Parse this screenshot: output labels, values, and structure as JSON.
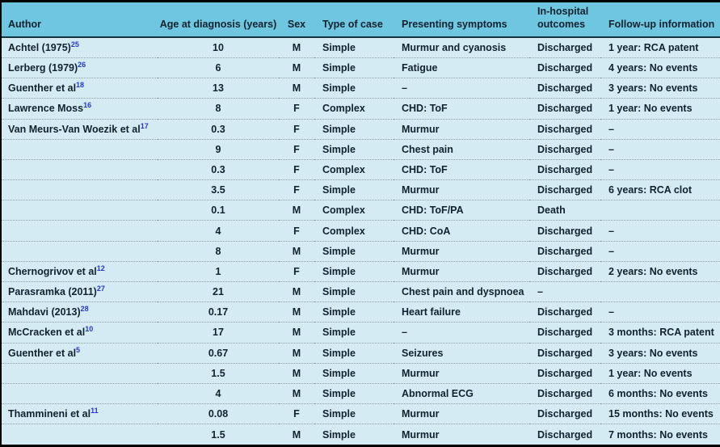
{
  "colors": {
    "header_bg": "#6ec6e1",
    "body_bg": "#d4ebf3",
    "frame_border": "#000000",
    "header_rule": "#16323e",
    "row_divider": "#8fa0a6",
    "text": "#10222e",
    "reference_link": "#2438cf"
  },
  "table": {
    "columns": [
      "Author",
      "Age at diagnosis (years)",
      "Sex",
      "Type of case",
      "Presenting symptoms",
      "In-hospital outcomes",
      "Follow-up information"
    ],
    "rows": [
      {
        "author": "Achtel (1975)",
        "ref": "25",
        "age": "10",
        "sex": "M",
        "type": "Simple",
        "symptoms": "Murmur and cyanosis",
        "outcome": "Discharged",
        "followup": "1 year: RCA patent"
      },
      {
        "author": "Lerberg (1979)",
        "ref": "26",
        "age": "6",
        "sex": "M",
        "type": "Simple",
        "symptoms": "Fatigue",
        "outcome": "Discharged",
        "followup": "4 years: No events"
      },
      {
        "author": "Guenther et al",
        "ref": "18",
        "age": "13",
        "sex": "M",
        "type": "Simple",
        "symptoms": "–",
        "outcome": "Discharged",
        "followup": "3 years: No events"
      },
      {
        "author": "Lawrence Moss",
        "ref": "16",
        "age": "8",
        "sex": "F",
        "type": "Complex",
        "symptoms": "CHD: ToF",
        "outcome": "Discharged",
        "followup": "1 year: No events"
      },
      {
        "author": "Van Meurs-Van Woezik et al",
        "ref": "17",
        "age": "0.3",
        "sex": "F",
        "type": "Simple",
        "symptoms": "Murmur",
        "outcome": "Discharged",
        "followup": "–"
      },
      {
        "author": "",
        "ref": "",
        "age": "9",
        "sex": "F",
        "type": "Simple",
        "symptoms": "Chest pain",
        "outcome": "Discharged",
        "followup": "–"
      },
      {
        "author": "",
        "ref": "",
        "age": "0.3",
        "sex": "F",
        "type": "Complex",
        "symptoms": "CHD: ToF",
        "outcome": "Discharged",
        "followup": "–"
      },
      {
        "author": "",
        "ref": "",
        "age": "3.5",
        "sex": "F",
        "type": "Simple",
        "symptoms": "Murmur",
        "outcome": "Discharged",
        "followup": "6 years: RCA clot"
      },
      {
        "author": "",
        "ref": "",
        "age": "0.1",
        "sex": "M",
        "type": "Complex",
        "symptoms": "CHD: ToF/PA",
        "outcome": "Death",
        "followup": ""
      },
      {
        "author": "",
        "ref": "",
        "age": "4",
        "sex": "F",
        "type": "Complex",
        "symptoms": "CHD: CoA",
        "outcome": "Discharged",
        "followup": "–"
      },
      {
        "author": "",
        "ref": "",
        "age": "8",
        "sex": "M",
        "type": "Simple",
        "symptoms": "Murmur",
        "outcome": "Discharged",
        "followup": "–"
      },
      {
        "author": "Chernogrivov et al",
        "ref": "12",
        "age": "1",
        "sex": "F",
        "type": "Simple",
        "symptoms": "Murmur",
        "outcome": "Discharged",
        "followup": "2 years: No events"
      },
      {
        "author": "Parasramka (2011)",
        "ref": "27",
        "age": "21",
        "sex": "M",
        "type": "Simple",
        "symptoms": "Chest pain and dyspnoea",
        "outcome": "–",
        "followup": ""
      },
      {
        "author": "Mahdavi (2013)",
        "ref": "28",
        "age": "0.17",
        "sex": "M",
        "type": "Simple",
        "symptoms": "Heart failure",
        "outcome": "Discharged",
        "followup": "–"
      },
      {
        "author": "McCracken et al",
        "ref": "10",
        "age": "17",
        "sex": "M",
        "type": "Simple",
        "symptoms": "–",
        "outcome": "Discharged",
        "followup": "3 months: RCA patent"
      },
      {
        "author": "Guenther et al",
        "ref": "5",
        "age": "0.67",
        "sex": "M",
        "type": "Simple",
        "symptoms": "Seizures",
        "outcome": "Discharged",
        "followup": "3 years: No events"
      },
      {
        "author": "",
        "ref": "",
        "age": "1.5",
        "sex": "M",
        "type": "Simple",
        "symptoms": "Murmur",
        "outcome": "Discharged",
        "followup": "1 year: No events"
      },
      {
        "author": "",
        "ref": "",
        "age": "4",
        "sex": "M",
        "type": "Simple",
        "symptoms": "Abnormal ECG",
        "outcome": "Discharged",
        "followup": "6 months: No events"
      },
      {
        "author": "Thammineni et al",
        "ref": "11",
        "age": "0.08",
        "sex": "F",
        "type": "Simple",
        "symptoms": "Murmur",
        "outcome": "Discharged",
        "followup": "15 months: No events"
      },
      {
        "author": "",
        "ref": "",
        "age": "1.5",
        "sex": "M",
        "type": "Simple",
        "symptoms": "Murmur",
        "outcome": "Discharged",
        "followup": "7 months: No events"
      }
    ]
  }
}
